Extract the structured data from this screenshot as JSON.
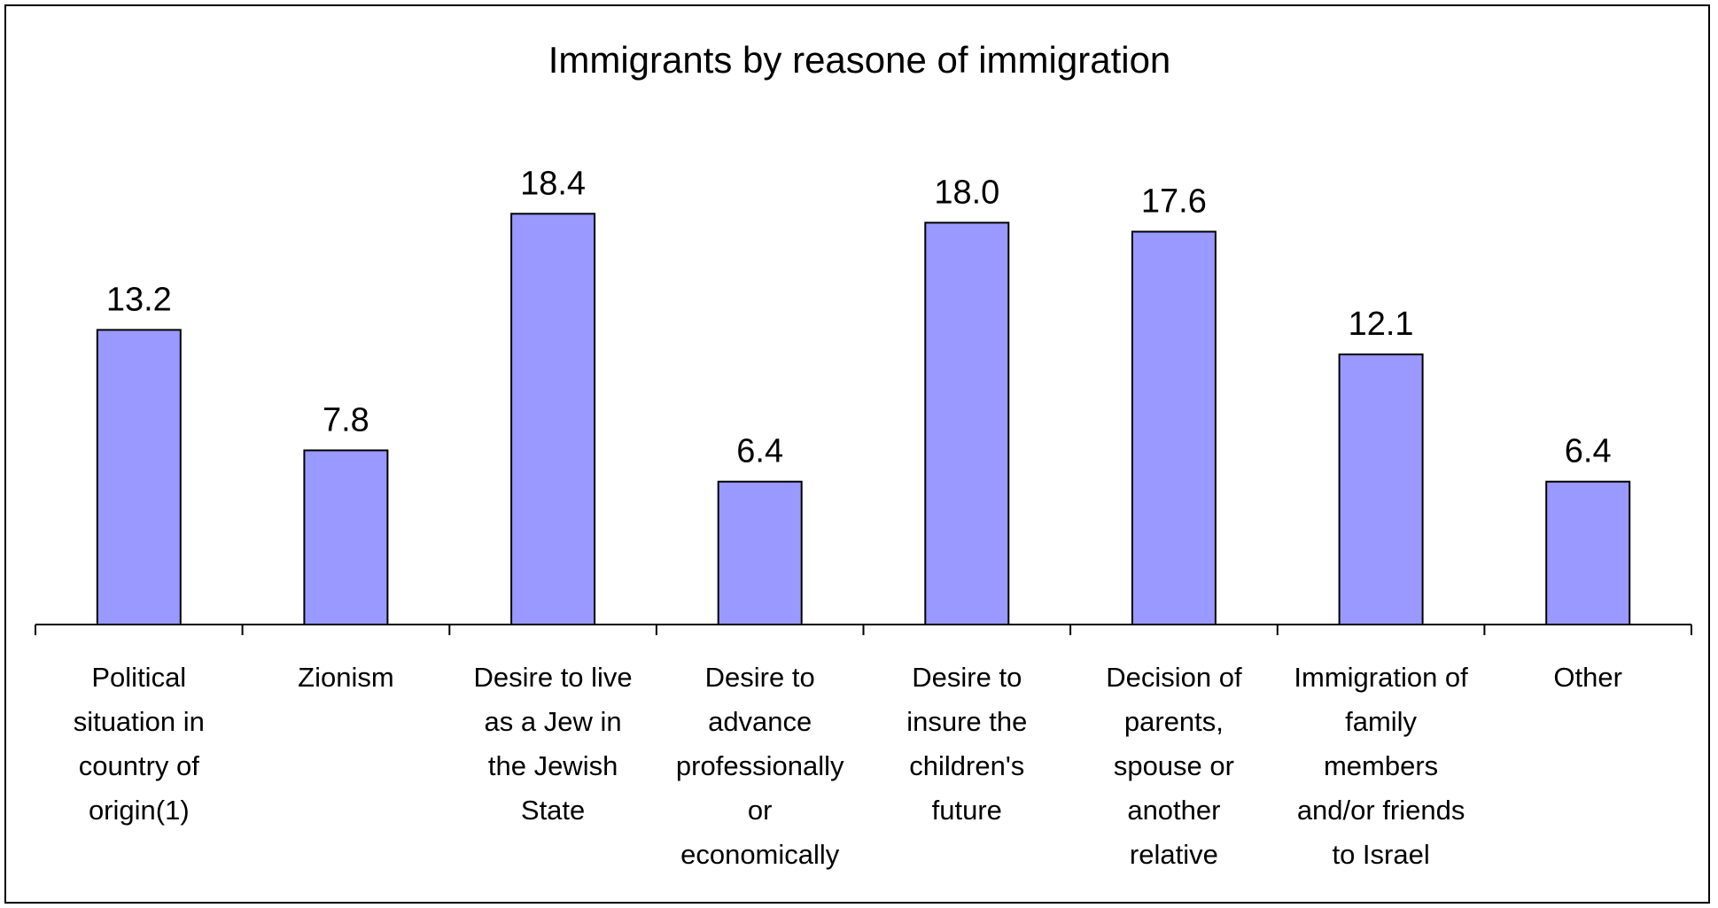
{
  "chart_data": {
    "type": "bar",
    "title": "Immigrants by reasone of immigration",
    "xlabel": "",
    "ylabel": "",
    "ylim": [
      0,
      20
    ],
    "grid": false,
    "legend": "none",
    "bar_color": "#9999ff",
    "categories": [
      "Political situation in country of origin(1)",
      "Zionism",
      "Desire to live as a Jew in the Jewish State",
      "Desire to advance professionally or economically",
      "Desire to insure the children's future",
      "Decision of parents, spouse or another relative",
      "Immigration of family members and/or friends to Israel",
      "Other"
    ],
    "category_lines": [
      [
        "Political",
        "situation in",
        "country of",
        "origin(1)"
      ],
      [
        "Zionism"
      ],
      [
        "Desire to live",
        "as a Jew in",
        "the Jewish",
        "State"
      ],
      [
        "Desire to",
        "advance",
        "professionally",
        "or",
        "economically"
      ],
      [
        "Desire to",
        "insure the",
        "children's",
        "future"
      ],
      [
        "Decision of",
        "parents,",
        "spouse or",
        "another",
        "relative"
      ],
      [
        "Immigration of",
        "family",
        "members",
        "and/or friends",
        "to Israel"
      ],
      [
        "Other"
      ]
    ],
    "values": [
      13.2,
      7.8,
      18.4,
      6.4,
      18.0,
      17.6,
      12.1,
      6.4
    ],
    "value_labels": [
      "13.2",
      "7.8",
      "18.4",
      "6.4",
      "18.0",
      "17.6",
      "12.1",
      "6.4"
    ]
  }
}
